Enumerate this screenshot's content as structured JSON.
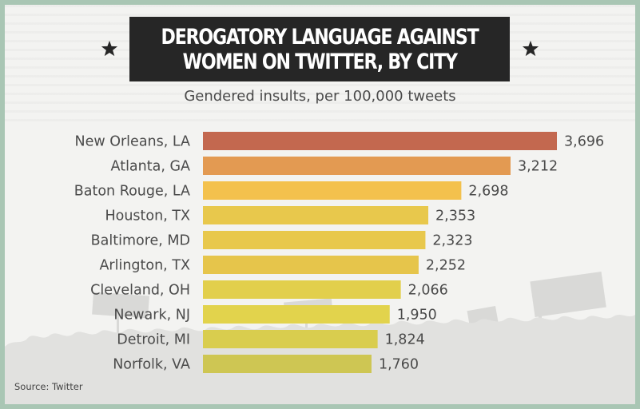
{
  "chart_data": {
    "type": "bar",
    "orientation": "horizontal",
    "title_lines": [
      "DEROGATORY LANGUAGE AGAINST",
      "WOMEN ON TWITTER, BY CITY"
    ],
    "subtitle": "Gendered insults, per 100,000 tweets",
    "categories": [
      "New Orleans, LA",
      "Atlanta, GA",
      "Baton Rouge, LA",
      "Houston, TX",
      "Baltimore, MD",
      "Arlington, TX",
      "Cleveland, OH",
      "Newark, NJ",
      "Detroit, MI",
      "Norfolk, VA"
    ],
    "values": [
      3696,
      3212,
      2698,
      2353,
      2323,
      2252,
      2066,
      1950,
      1824,
      1760
    ],
    "value_labels": [
      "3,696",
      "3,212",
      "2,698",
      "2,353",
      "2,323",
      "2,252",
      "2,066",
      "1,950",
      "1,824",
      "1,760"
    ],
    "bar_colors": [
      "#c3684f",
      "#e39a52",
      "#f3c14d",
      "#e8c84c",
      "#e8c84c",
      "#e6c54b",
      "#e2cf4c",
      "#e2d34c",
      "#d9cd4e",
      "#cec653"
    ],
    "xlim": [
      0,
      3696
    ],
    "grid": false,
    "legend": "none",
    "source": "Source: Twitter"
  },
  "colors": {
    "border": "#a9c6b4",
    "background": "#f3f3f1",
    "title_box": "#262626",
    "title_text": "#ffffff",
    "text": "#4a4a4a"
  },
  "icons": [
    "star-icon-left",
    "star-icon-right"
  ]
}
